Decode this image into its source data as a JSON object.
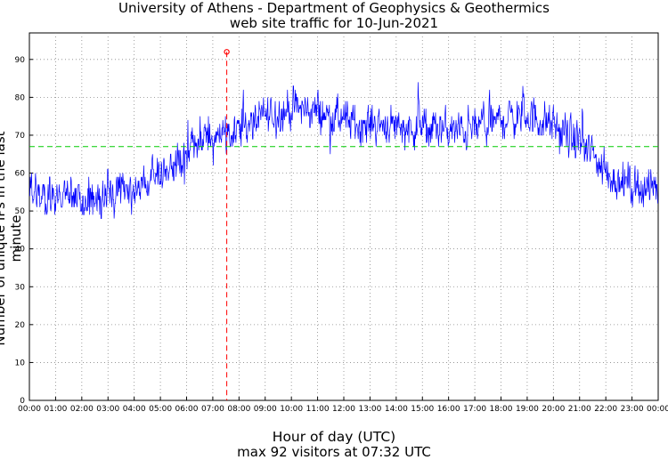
{
  "chart_data": {
    "type": "line",
    "title": "University of Athens - Department of Geophysics & Geothermics",
    "subtitle": "web site traffic for 10-Jun-2021",
    "xlabel": "Hour of day (UTC)",
    "ylabel": "Number of unique IPs in the last minute",
    "annotation": "max 92 visitors at 07:32 UTC",
    "xlim": [
      0,
      24
    ],
    "ylim": [
      0,
      97
    ],
    "x_ticks": [
      "00:00",
      "01:00",
      "02:00",
      "03:00",
      "04:00",
      "05:00",
      "06:00",
      "07:00",
      "08:00",
      "09:00",
      "10:00",
      "11:00",
      "12:00",
      "13:00",
      "14:00",
      "15:00",
      "16:00",
      "17:00",
      "18:00",
      "19:00",
      "20:00",
      "21:00",
      "22:00",
      "23:00",
      "00:00"
    ],
    "y_ticks": [
      0,
      10,
      20,
      30,
      40,
      50,
      60,
      70,
      80,
      90
    ],
    "grid": true,
    "series": [
      {
        "color": "#0000ff",
        "trend_x": [
          0,
          0.5,
          1,
          1.5,
          2,
          2.5,
          3,
          3.5,
          4,
          4.5,
          5,
          5.5,
          6,
          6.5,
          7,
          7.5,
          8,
          8.5,
          9,
          9.5,
          10,
          10.5,
          11,
          11.5,
          12,
          12.5,
          13,
          13.5,
          14,
          14.5,
          15,
          15.5,
          16,
          16.5,
          17,
          17.5,
          18,
          18.5,
          19,
          19.5,
          20,
          20.5,
          21,
          21.5,
          22,
          22.5,
          23,
          23.5,
          24
        ],
        "trend_y": [
          56,
          55,
          54,
          53,
          53,
          53,
          54,
          55,
          56,
          57,
          60,
          62,
          65,
          68,
          70,
          71,
          72,
          73,
          75,
          76,
          77,
          77,
          76,
          75,
          74,
          73,
          73,
          73,
          73,
          72,
          72,
          72,
          71,
          71,
          72,
          73,
          74,
          75,
          75,
          74,
          72,
          70,
          68,
          65,
          60,
          58,
          57,
          56,
          56
        ]
      }
    ],
    "reference_line": {
      "y": 67,
      "color": "#00cc00"
    },
    "max_marker": {
      "x": 7.533,
      "y": 92,
      "color": "#ff0000"
    }
  }
}
